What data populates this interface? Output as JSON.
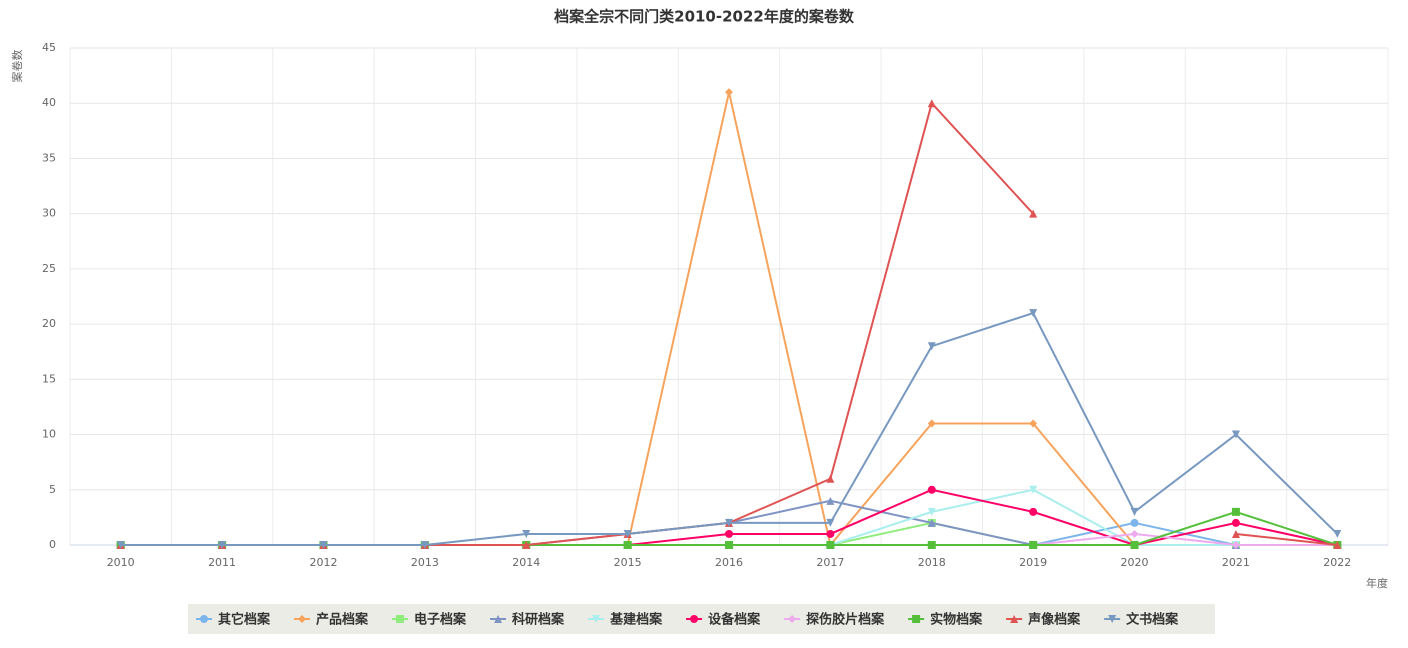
{
  "chart_data": {
    "type": "line",
    "title": "档案全宗不同门类2010-2022年度的案卷数",
    "y_label": "案卷数",
    "x_label": "年度",
    "categories": [
      "2010",
      "2011",
      "2012",
      "2013",
      "2014",
      "2015",
      "2016",
      "2017",
      "2018",
      "2019",
      "2020",
      "2021",
      "2022"
    ],
    "ylim": [
      0,
      45
    ],
    "yticks": [
      0,
      5,
      10,
      15,
      20,
      25,
      30,
      35,
      40,
      45
    ],
    "grid": true,
    "series": [
      {
        "name": "其它档案",
        "color": "#7cb5ec",
        "marker": "circle",
        "values": [
          0,
          0,
          0,
          0,
          0,
          0,
          0,
          0,
          0,
          0,
          2,
          0,
          0
        ]
      },
      {
        "name": "产品档案",
        "color": "#f7a35c",
        "marker": "diamond",
        "values": [
          0,
          0,
          0,
          0,
          0,
          0,
          41,
          0,
          11,
          11,
          0,
          0,
          0
        ]
      },
      {
        "name": "电子档案",
        "color": "#90ed7d",
        "marker": "square",
        "values": [
          0,
          0,
          0,
          0,
          0,
          0,
          0,
          0,
          2,
          0,
          0,
          0,
          0
        ]
      },
      {
        "name": "科研档案",
        "color": "#7f94c4",
        "marker": "triangle",
        "values": [
          0,
          0,
          0,
          0,
          0,
          1,
          2,
          4,
          2,
          0,
          0,
          0,
          0
        ]
      },
      {
        "name": "基建档案",
        "color": "#aaeeee",
        "marker": "triangle-down",
        "values": [
          0,
          0,
          0,
          0,
          0,
          0,
          0,
          0,
          3,
          5,
          0,
          0,
          0
        ]
      },
      {
        "name": "设备档案",
        "color": "#ff0066",
        "marker": "circle",
        "values": [
          0,
          0,
          0,
          0,
          0,
          0,
          1,
          1,
          5,
          3,
          0,
          2,
          0
        ]
      },
      {
        "name": "探伤胶片档案",
        "color": "#eeaaee",
        "marker": "diamond",
        "values": [
          0,
          0,
          0,
          0,
          0,
          0,
          0,
          0,
          0,
          0,
          1,
          0,
          0
        ]
      },
      {
        "name": "实物档案",
        "color": "#55bf3b",
        "marker": "square",
        "values": [
          0,
          0,
          0,
          0,
          0,
          0,
          0,
          0,
          0,
          0,
          0,
          3,
          0
        ]
      },
      {
        "name": "声像档案",
        "color": "#df5353",
        "marker": "triangle",
        "values": [
          0,
          0,
          0,
          0,
          0,
          1,
          2,
          6,
          40,
          30,
          null,
          1,
          0
        ]
      },
      {
        "name": "文书档案",
        "color": "#7798bf",
        "marker": "triangle-down",
        "values": [
          0,
          0,
          0,
          0,
          1,
          1,
          2,
          2,
          18,
          21,
          3,
          10,
          1
        ]
      }
    ]
  }
}
